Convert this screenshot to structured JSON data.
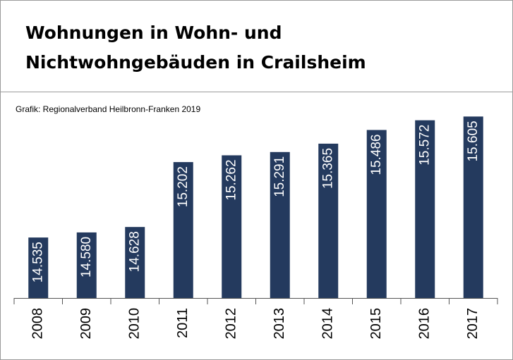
{
  "chart_data": {
    "type": "bar",
    "title": [
      "Wohnungen in Wohn- und",
      "Nichtwohngebäuden in Crailsheim"
    ],
    "subtitle": "Grafik: Regionalverband Heilbronn-Franken 2019",
    "categories": [
      "2008",
      "2009",
      "2010",
      "2011",
      "2012",
      "2013",
      "2014",
      "2015",
      "2016",
      "2017"
    ],
    "values": [
      14535,
      14580,
      14628,
      15202,
      15262,
      15291,
      15365,
      15486,
      15572,
      15605
    ],
    "value_labels": [
      "14.535",
      "14.580",
      "14.628",
      "15.202",
      "15.262",
      "15.291",
      "15.365",
      "15.486",
      "15.572",
      "15.605"
    ],
    "color": "#243a5e",
    "ylim": [
      14000,
      16000
    ]
  }
}
